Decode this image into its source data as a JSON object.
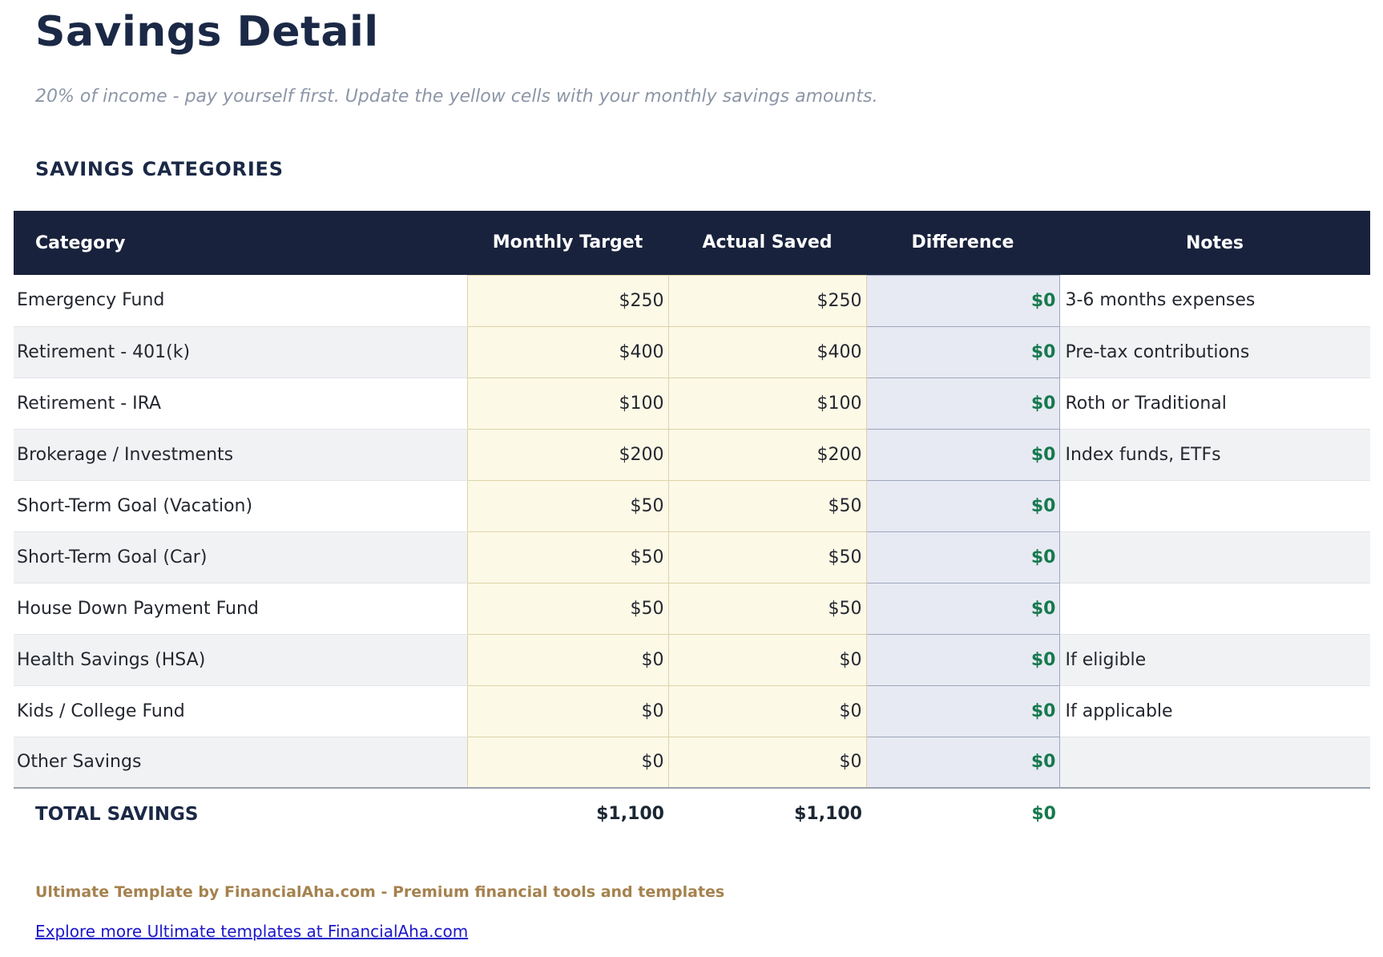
{
  "page": {
    "title": "Savings Detail",
    "subtitle": "20% of income - pay yourself first. Update the yellow cells with your monthly savings amounts.",
    "section_heading": "SAVINGS CATEGORIES"
  },
  "table": {
    "columns": [
      "Category",
      "Monthly Target",
      "Actual Saved",
      "Difference",
      "Notes"
    ],
    "rows": [
      {
        "category": "Emergency Fund",
        "monthly_target": "$250",
        "actual_saved": "$250",
        "difference": "$0",
        "notes": "3-6 months expenses"
      },
      {
        "category": "Retirement - 401(k)",
        "monthly_target": "$400",
        "actual_saved": "$400",
        "difference": "$0",
        "notes": "Pre-tax contributions"
      },
      {
        "category": "Retirement - IRA",
        "monthly_target": "$100",
        "actual_saved": "$100",
        "difference": "$0",
        "notes": "Roth or Traditional"
      },
      {
        "category": "Brokerage / Investments",
        "monthly_target": "$200",
        "actual_saved": "$200",
        "difference": "$0",
        "notes": "Index funds, ETFs"
      },
      {
        "category": "Short-Term Goal (Vacation)",
        "monthly_target": "$50",
        "actual_saved": "$50",
        "difference": "$0",
        "notes": ""
      },
      {
        "category": "Short-Term Goal (Car)",
        "monthly_target": "$50",
        "actual_saved": "$50",
        "difference": "$0",
        "notes": ""
      },
      {
        "category": "House Down Payment Fund",
        "monthly_target": "$50",
        "actual_saved": "$50",
        "difference": "$0",
        "notes": ""
      },
      {
        "category": "Health Savings (HSA)",
        "monthly_target": "$0",
        "actual_saved": "$0",
        "difference": "$0",
        "notes": "If eligible"
      },
      {
        "category": "Kids / College Fund",
        "monthly_target": "$0",
        "actual_saved": "$0",
        "difference": "$0",
        "notes": "If applicable"
      },
      {
        "category": "Other Savings",
        "monthly_target": "$0",
        "actual_saved": "$0",
        "difference": "$0",
        "notes": ""
      }
    ],
    "total": {
      "label": "TOTAL SAVINGS",
      "monthly_target": "$1,100",
      "actual_saved": "$1,100",
      "difference": "$0",
      "notes": ""
    }
  },
  "footer": {
    "branding": "Ultimate Template by FinancialAha.com - Premium financial tools and templates",
    "link": "Explore more Ultimate templates at FinancialAha.com"
  },
  "colors": {
    "header_navy": "#19223C",
    "heading_text": "#1B2946",
    "input_cell_yellow": "#FDF9E7",
    "input_cell_border": "#DCD3A9",
    "difference_cell_lavender": "#E7EAF3",
    "difference_cell_border": "#A0A7BC",
    "difference_green": "#17794E",
    "row_stripe_gray": "#F1F2F4",
    "branding_gold": "#A5824E",
    "link_blue": "#1C16C9"
  }
}
